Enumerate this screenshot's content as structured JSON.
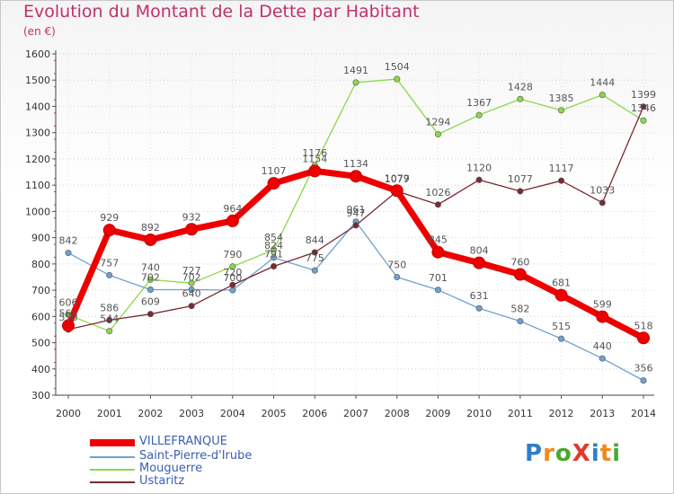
{
  "title": "Evolution du Montant de la Dette par Habitant",
  "unit_label": "(en €)",
  "logo_text": "ProXiti",
  "chart_data": {
    "type": "line",
    "title": "Evolution du Montant de la Dette par Habitant",
    "ylabel": "(en €)",
    "xlabel": "",
    "x": [
      "2000",
      "2001",
      "2002",
      "2003",
      "2004",
      "2005",
      "2006",
      "2007",
      "2008",
      "2009",
      "2010",
      "2011",
      "2012",
      "2013",
      "2014"
    ],
    "ylim": [
      300,
      1600
    ],
    "yticks": [
      "300",
      "400",
      "500",
      "600",
      "700",
      "800",
      "900",
      "1000",
      "1100",
      "1200",
      "1300",
      "1400",
      "1500",
      "1600"
    ],
    "grid": "dotted horizontal",
    "legend_position": "bottom-left",
    "series": [
      {
        "name": "VILLEFRANQUE",
        "color": "#ee0000",
        "values": [
          565,
          929,
          892,
          932,
          964,
          1107,
          1154,
          1134,
          1079,
          845,
          804,
          760,
          681,
          599,
          518
        ]
      },
      {
        "name": "Saint-Pierre-d'Irube",
        "color": "#6fa1d0",
        "values": [
          842,
          757,
          702,
          702,
          700,
          824,
          775,
          961,
          750,
          701,
          631,
          582,
          515,
          440,
          356
        ]
      },
      {
        "name": "Mouguerre",
        "color": "#8bd84a",
        "values": [
          606,
          544,
          740,
          727,
          790,
          854,
          1176,
          1491,
          1504,
          1294,
          1367,
          1428,
          1385,
          1444,
          1346
        ]
      },
      {
        "name": "Ustaritz",
        "color": "#7a2a30",
        "values": [
          550,
          586,
          609,
          640,
          720,
          791,
          844,
          947,
          1077,
          1026,
          1120,
          1077,
          1117,
          1033,
          1399
        ]
      }
    ]
  }
}
